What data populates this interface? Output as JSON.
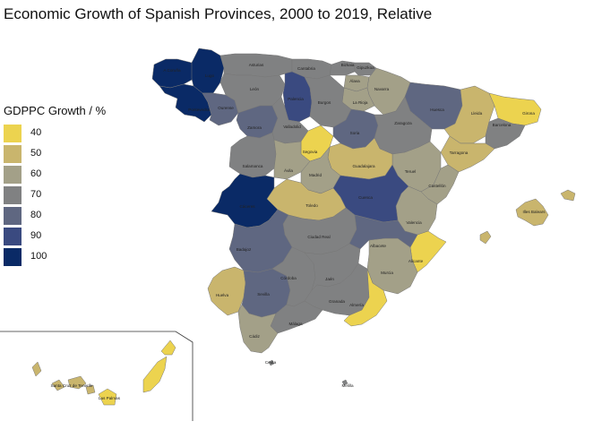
{
  "title": "Economic Growth of Spanish Provinces, 2000 to 2019, Relative",
  "legend": {
    "title": "GDPPC Growth / %",
    "items": [
      {
        "label": "40",
        "color": "#ecd34f"
      },
      {
        "label": "50",
        "color": "#c9b56d"
      },
      {
        "label": "60",
        "color": "#a3a088"
      },
      {
        "label": "70",
        "color": "#808182"
      },
      {
        "label": "80",
        "color": "#5f6781"
      },
      {
        "label": "90",
        "color": "#3a4a80"
      },
      {
        "label": "100",
        "color": "#0a2a66"
      }
    ]
  },
  "provinces": [
    {
      "name": "A Coruña",
      "label": "A Coruña",
      "growth": 100,
      "color": "#0a2a66"
    },
    {
      "name": "Lugo",
      "label": "Lugo",
      "growth": 100,
      "color": "#0a2a66"
    },
    {
      "name": "Asturias",
      "label": "Asturias",
      "growth": 70,
      "color": "#808182"
    },
    {
      "name": "Cantabria",
      "label": "Cantabria",
      "growth": 70,
      "color": "#808182"
    },
    {
      "name": "Bizkaia",
      "label": "Bizkaia",
      "growth": 70,
      "color": "#808182"
    },
    {
      "name": "Gipuzkoa",
      "label": "Gipuzkoa",
      "growth": 70,
      "color": "#808182"
    },
    {
      "name": "Álava",
      "label": "Álava",
      "growth": 60,
      "color": "#a3a088"
    },
    {
      "name": "Navarra",
      "label": "Navarra",
      "growth": 60,
      "color": "#a3a088"
    },
    {
      "name": "La Rioja",
      "label": "La Rioja",
      "growth": 60,
      "color": "#a3a088"
    },
    {
      "name": "Huesca",
      "label": "Huesca",
      "growth": 80,
      "color": "#5f6781"
    },
    {
      "name": "Lleida",
      "label": "Lleida",
      "growth": 50,
      "color": "#c9b56d"
    },
    {
      "name": "Girona",
      "label": "Girona",
      "growth": 40,
      "color": "#ecd34f"
    },
    {
      "name": "Barcelona",
      "label": "Barcelona",
      "growth": 70,
      "color": "#808182"
    },
    {
      "name": "Tarragona",
      "label": "Tarragona",
      "growth": 50,
      "color": "#c9b56d"
    },
    {
      "name": "Zaragoza",
      "label": "Zaragoza",
      "growth": 70,
      "color": "#808182"
    },
    {
      "name": "Teruel",
      "label": "Teruel",
      "growth": 60,
      "color": "#a3a088"
    },
    {
      "name": "Castellón",
      "label": "Castellón",
      "growth": 60,
      "color": "#a3a088"
    },
    {
      "name": "Valencia",
      "label": "Valencia",
      "growth": 60,
      "color": "#a3a088"
    },
    {
      "name": "Alicante",
      "label": "Alicante",
      "growth": 40,
      "color": "#ecd34f"
    },
    {
      "name": "Murcia",
      "label": "Murcia",
      "growth": 60,
      "color": "#a3a088"
    },
    {
      "name": "Almería",
      "label": "Almería",
      "growth": 40,
      "color": "#ecd34f"
    },
    {
      "name": "Granada",
      "label": "Granada",
      "growth": 70,
      "color": "#808182"
    },
    {
      "name": "Jaén",
      "label": "Jaén",
      "growth": 70,
      "color": "#808182"
    },
    {
      "name": "Córdoba",
      "label": "Córdoba",
      "growth": 70,
      "color": "#808182"
    },
    {
      "name": "Sevilla",
      "label": "Sevilla",
      "growth": 80,
      "color": "#5f6781"
    },
    {
      "name": "Huelva",
      "label": "Huelva",
      "growth": 50,
      "color": "#c9b56d"
    },
    {
      "name": "Cádiz",
      "label": "Cádiz",
      "growth": 60,
      "color": "#a3a088"
    },
    {
      "name": "Málaga",
      "label": "Málaga",
      "growth": 70,
      "color": "#808182"
    },
    {
      "name": "Badajoz",
      "label": "Badajoz",
      "growth": 80,
      "color": "#5f6781"
    },
    {
      "name": "Cáceres",
      "label": "Cáceres",
      "growth": 100,
      "color": "#0a2a66"
    },
    {
      "name": "Ciudad Real",
      "label": "Ciudad Real",
      "growth": 70,
      "color": "#808182"
    },
    {
      "name": "Albacete",
      "label": "Albacete",
      "growth": 80,
      "color": "#5f6781"
    },
    {
      "name": "Cuenca",
      "label": "Cuenca",
      "growth": 90,
      "color": "#3a4a80"
    },
    {
      "name": "Toledo",
      "label": "Toledo",
      "growth": 50,
      "color": "#c9b56d"
    },
    {
      "name": "Madrid",
      "label": "Madrid",
      "growth": 60,
      "color": "#a3a088"
    },
    {
      "name": "Guadalajara",
      "label": "Guadalajara",
      "growth": 50,
      "color": "#c9b56d"
    },
    {
      "name": "Soria",
      "label": "Soria",
      "growth": 80,
      "color": "#5f6781"
    },
    {
      "name": "Segovia",
      "label": "Segovia",
      "growth": 40,
      "color": "#ecd34f"
    },
    {
      "name": "Ávila",
      "label": "Ávila",
      "growth": 60,
      "color": "#a3a088"
    },
    {
      "name": "Salamanca",
      "label": "Salamanca",
      "growth": 70,
      "color": "#808182"
    },
    {
      "name": "Zamora",
      "label": "Zamora",
      "growth": 80,
      "color": "#5f6781"
    },
    {
      "name": "Valladolid",
      "label": "Valladolid",
      "growth": 70,
      "color": "#808182"
    },
    {
      "name": "Palencia",
      "label": "Palencia",
      "growth": 90,
      "color": "#3a4a80"
    },
    {
      "name": "Burgos",
      "label": "Burgos",
      "growth": 70,
      "color": "#808182"
    },
    {
      "name": "León",
      "label": "León",
      "growth": 70,
      "color": "#808182"
    },
    {
      "name": "Ourense",
      "label": "Ourense",
      "growth": 80,
      "color": "#5f6781"
    },
    {
      "name": "Pontevedra",
      "label": "Pontevedra",
      "growth": 100,
      "color": "#0a2a66"
    },
    {
      "name": "Illes Balears",
      "label": "Illes Balears",
      "growth": 50,
      "color": "#c9b56d"
    },
    {
      "name": "Santa Cruz de Tenerife",
      "label": "Santa Cruz de Tenerife",
      "growth": 50,
      "color": "#c9b56d"
    },
    {
      "name": "Las Palmas",
      "label": "Las Palmas",
      "growth": 40,
      "color": "#ecd34f"
    },
    {
      "name": "Ceuta",
      "label": "Ceuta",
      "growth": 70,
      "color": "#808182"
    },
    {
      "name": "Melilla",
      "label": "Melilla",
      "growth": 70,
      "color": "#808182"
    }
  ]
}
